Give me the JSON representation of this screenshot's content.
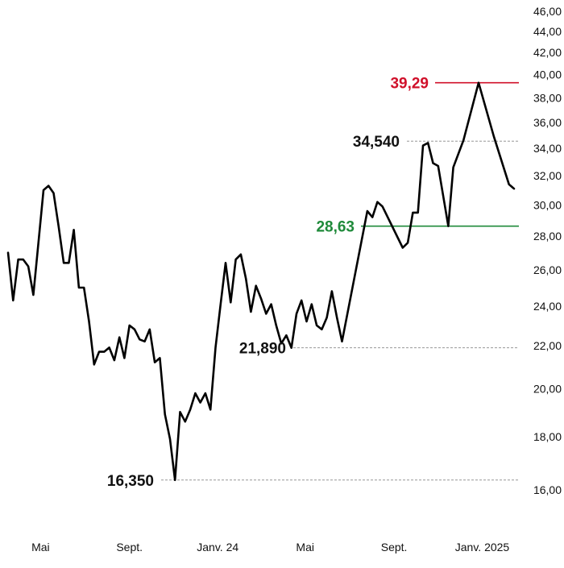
{
  "colors": {
    "line": "#000000",
    "red": "#d0102a",
    "green": "#1f8a3a",
    "dashed": "#888888"
  },
  "chart_data": {
    "type": "line",
    "title": "",
    "xlabel": "",
    "ylabel": "",
    "y_ticks": [
      "16,00",
      "18,00",
      "20,00",
      "22,00",
      "24,00",
      "26,00",
      "28,00",
      "30,00",
      "32,00",
      "34,00",
      "36,00",
      "38,00",
      "40,00",
      "42,00",
      "44,00",
      "46,00"
    ],
    "x_ticks": [
      "Mai",
      "Sept.",
      "Janv. 24",
      "Mai",
      "Sept.",
      "Janv. 2025"
    ],
    "x_tick_dates": [
      "2023-05-01",
      "2023-09-01",
      "2024-01-01",
      "2024-05-01",
      "2024-09-01",
      "2025-01-01"
    ],
    "y_scale": "log",
    "grid": false,
    "series": [
      {
        "values": [
          [
            "2023-03-17",
            27.0
          ],
          [
            "2023-03-24",
            24.3
          ],
          [
            "2023-03-31",
            26.6
          ],
          [
            "2023-04-07",
            26.6
          ],
          [
            "2023-04-14",
            26.2
          ],
          [
            "2023-04-21",
            24.6
          ],
          [
            "2023-04-28",
            27.6
          ],
          [
            "2023-05-05",
            31.0
          ],
          [
            "2023-05-12",
            31.3
          ],
          [
            "2023-05-19",
            30.8
          ],
          [
            "2023-05-26",
            28.6
          ],
          [
            "2023-06-02",
            26.4
          ],
          [
            "2023-06-09",
            26.4
          ],
          [
            "2023-06-16",
            28.4
          ],
          [
            "2023-06-23",
            25.0
          ],
          [
            "2023-06-30",
            25.0
          ],
          [
            "2023-07-07",
            23.2
          ],
          [
            "2023-07-14",
            21.1
          ],
          [
            "2023-07-21",
            21.7
          ],
          [
            "2023-07-28",
            21.7
          ],
          [
            "2023-08-04",
            21.9
          ],
          [
            "2023-08-11",
            21.3
          ],
          [
            "2023-08-18",
            22.4
          ],
          [
            "2023-08-25",
            21.4
          ],
          [
            "2023-09-01",
            23.0
          ],
          [
            "2023-09-08",
            22.8
          ],
          [
            "2023-09-15",
            22.3
          ],
          [
            "2023-09-22",
            22.2
          ],
          [
            "2023-09-29",
            22.8
          ],
          [
            "2023-10-06",
            21.2
          ],
          [
            "2023-10-13",
            21.4
          ],
          [
            "2023-10-20",
            18.9
          ],
          [
            "2023-10-27",
            17.9
          ],
          [
            "2023-11-03",
            16.35
          ],
          [
            "2023-11-10",
            19.0
          ],
          [
            "2023-11-17",
            18.6
          ],
          [
            "2023-11-24",
            19.1
          ],
          [
            "2023-12-01",
            19.8
          ],
          [
            "2023-12-08",
            19.4
          ],
          [
            "2023-12-15",
            19.8
          ],
          [
            "2023-12-22",
            19.1
          ],
          [
            "2023-12-29",
            21.9
          ],
          [
            "2024-01-05",
            24.1
          ],
          [
            "2024-01-12",
            26.4
          ],
          [
            "2024-01-19",
            24.2
          ],
          [
            "2024-01-26",
            26.6
          ],
          [
            "2024-02-02",
            26.9
          ],
          [
            "2024-02-09",
            25.5
          ],
          [
            "2024-02-16",
            23.7
          ],
          [
            "2024-02-23",
            25.1
          ],
          [
            "2024-03-01",
            24.4
          ],
          [
            "2024-03-08",
            23.6
          ],
          [
            "2024-03-15",
            24.1
          ],
          [
            "2024-03-22",
            23.0
          ],
          [
            "2024-03-29",
            22.1
          ],
          [
            "2024-04-05",
            22.5
          ],
          [
            "2024-04-12",
            21.89
          ],
          [
            "2024-04-19",
            23.6
          ],
          [
            "2024-04-26",
            24.3
          ],
          [
            "2024-05-03",
            23.2
          ],
          [
            "2024-05-10",
            24.1
          ],
          [
            "2024-05-17",
            23.0
          ],
          [
            "2024-05-24",
            22.8
          ],
          [
            "2024-05-31",
            23.4
          ],
          [
            "2024-06-07",
            24.8
          ],
          [
            "2024-06-14",
            23.4
          ],
          [
            "2024-06-21",
            22.2
          ],
          [
            "2024-07-26",
            29.6
          ],
          [
            "2024-08-02",
            29.2
          ],
          [
            "2024-08-09",
            30.2
          ],
          [
            "2024-08-16",
            29.9
          ],
          [
            "2024-09-13",
            27.3
          ],
          [
            "2024-09-20",
            27.6
          ],
          [
            "2024-09-27",
            29.5
          ],
          [
            "2024-10-04",
            29.5
          ],
          [
            "2024-10-11",
            34.2
          ],
          [
            "2024-10-18",
            34.4
          ],
          [
            "2024-10-25",
            32.9
          ],
          [
            "2024-11-01",
            32.7
          ],
          [
            "2024-11-08",
            30.6
          ],
          [
            "2024-11-15",
            28.63
          ],
          [
            "2024-11-22",
            32.6
          ],
          [
            "2024-12-06",
            34.6
          ],
          [
            "2024-12-27",
            39.29
          ],
          [
            "2025-01-17",
            34.9
          ],
          [
            "2025-02-07",
            31.4
          ],
          [
            "2025-02-14",
            31.1
          ]
        ]
      }
    ],
    "annotations": [
      {
        "label": "39,29",
        "value": 39.29,
        "color": "red",
        "style": "solid"
      },
      {
        "label": "34,540",
        "value": 34.54,
        "color": "black",
        "style": "dashed"
      },
      {
        "label": "28,63",
        "value": 28.63,
        "color": "green",
        "style": "solid"
      },
      {
        "label": "21,890",
        "value": 21.89,
        "color": "black",
        "style": "dashed"
      },
      {
        "label": "16,350",
        "value": 16.35,
        "color": "black",
        "style": "dashed"
      }
    ]
  }
}
